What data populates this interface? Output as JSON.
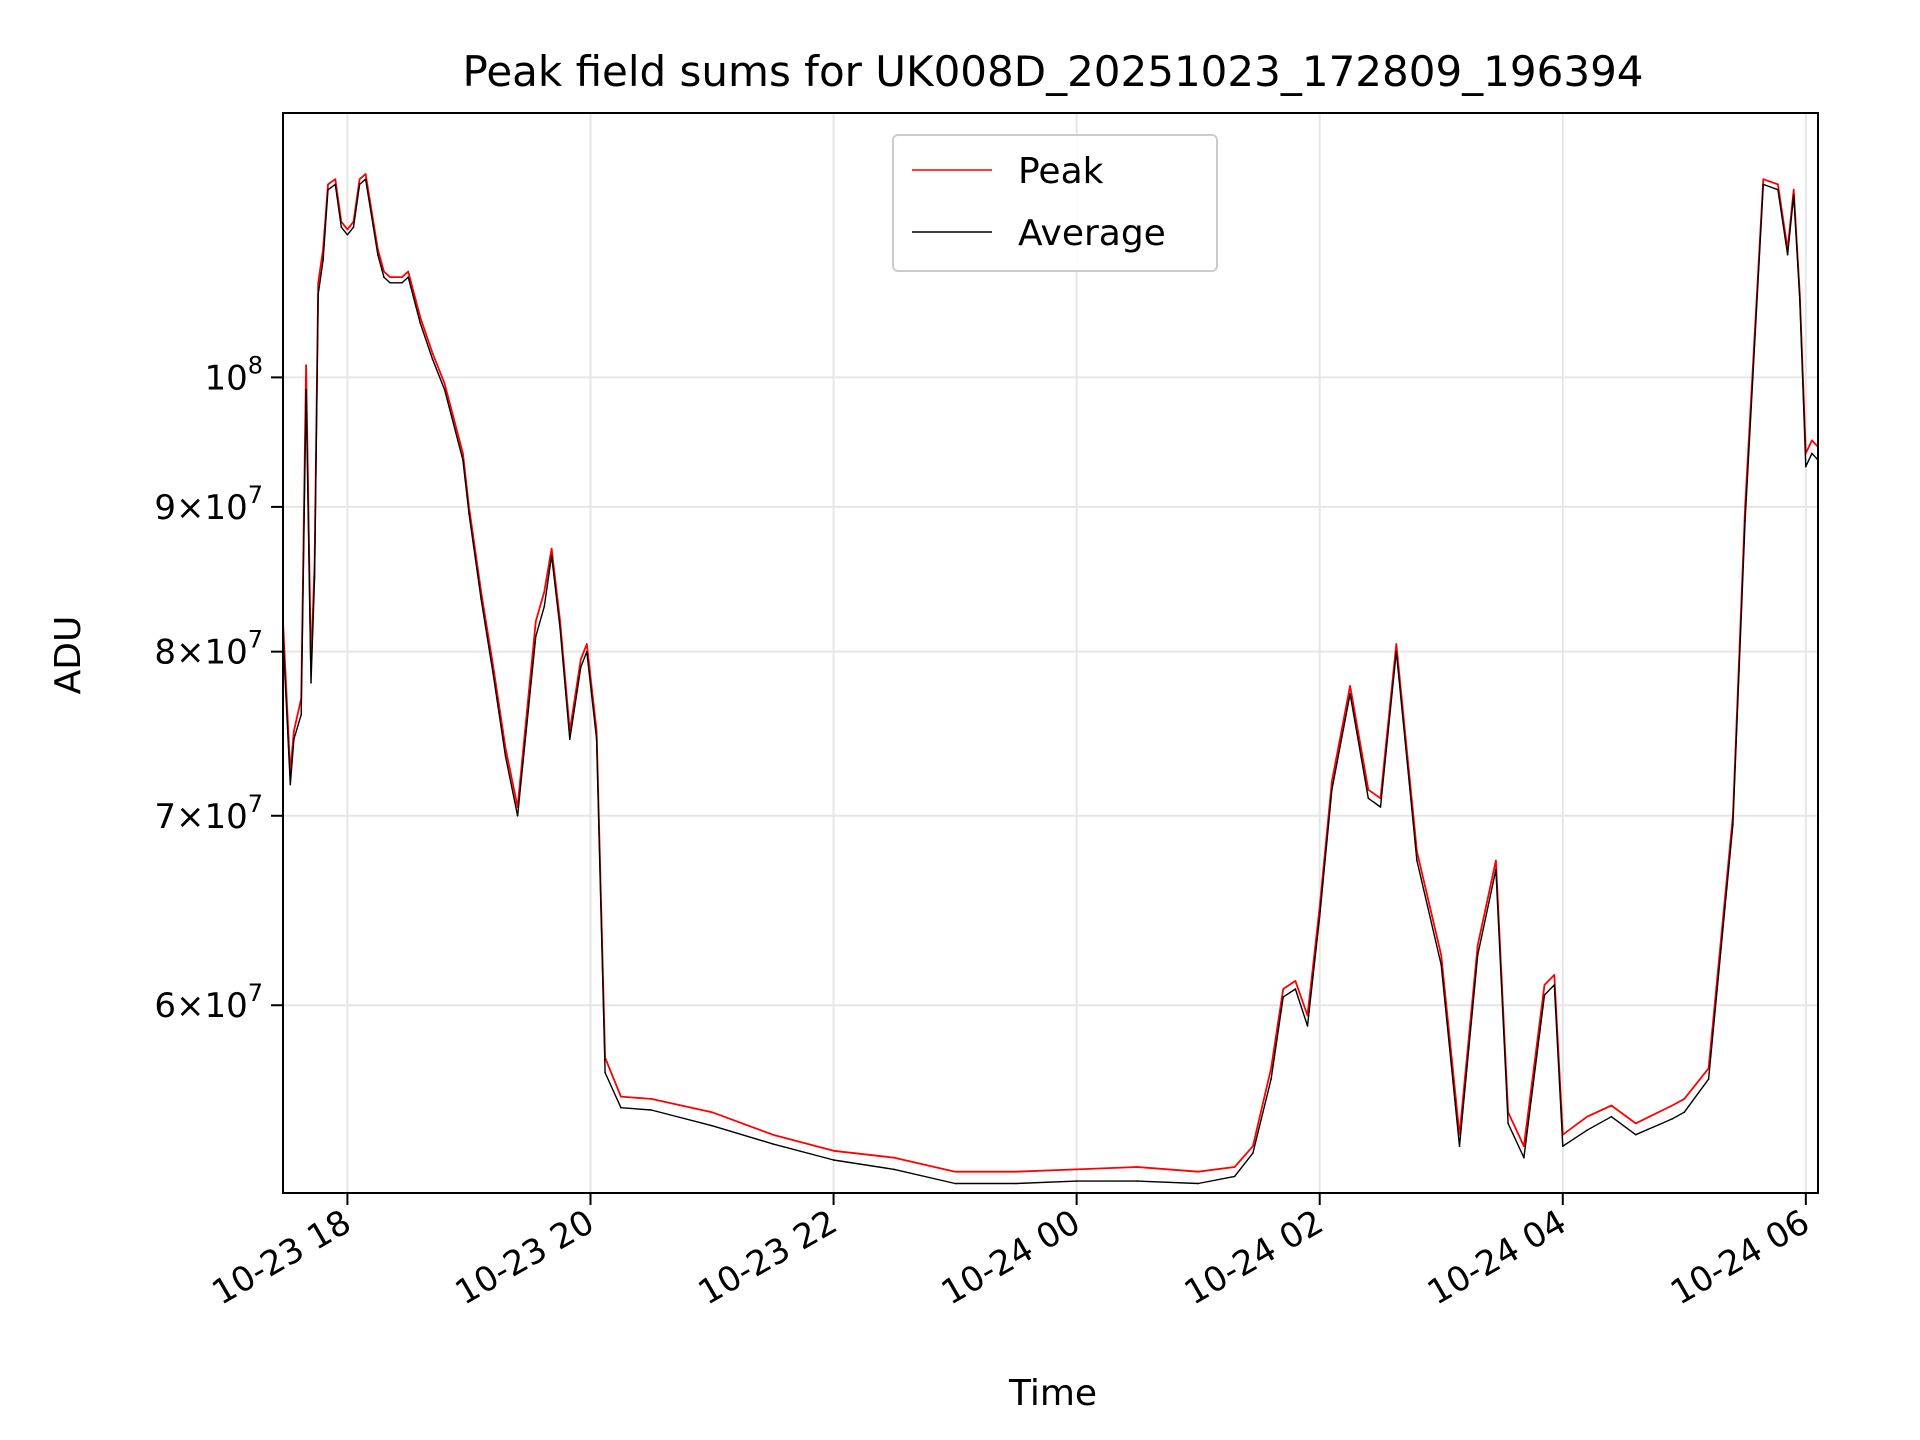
{
  "chart_data": {
    "type": "line",
    "title": "Peak field sums for UK008D_20251023_172809_196394",
    "xlabel": "Time",
    "ylabel": "ADU",
    "yscale": "log",
    "grid": true,
    "legend_position": "top-center",
    "xlim_hours": [
      17.47,
      30.1
    ],
    "ylim": [
      51500000,
      124000000
    ],
    "x_ticks": [
      {
        "hour": 18,
        "label": "10-23 18"
      },
      {
        "hour": 20,
        "label": "10-23 20"
      },
      {
        "hour": 22,
        "label": "10-23 22"
      },
      {
        "hour": 24,
        "label": "10-24 00"
      },
      {
        "hour": 26,
        "label": "10-24 02"
      },
      {
        "hour": 28,
        "label": "10-24 04"
      },
      {
        "hour": 30,
        "label": "10-24 06"
      }
    ],
    "y_ticks": [
      {
        "value": 60000000,
        "mantissa": "6",
        "exp": "7"
      },
      {
        "value": 70000000,
        "mantissa": "7",
        "exp": "7"
      },
      {
        "value": 80000000,
        "mantissa": "8",
        "exp": "7"
      },
      {
        "value": 90000000,
        "mantissa": "9",
        "exp": "7"
      },
      {
        "value": 100000000,
        "mantissa": "",
        "exp": "8"
      }
    ],
    "tick_base": "10",
    "times_sign": "×",
    "series": [
      {
        "name": "Peak",
        "color": "#ff0000",
        "x_hours": [
          17.47,
          17.53,
          17.56,
          17.62,
          17.66,
          17.7,
          17.73,
          17.76,
          17.8,
          17.84,
          17.9,
          17.95,
          18.0,
          18.05,
          18.1,
          18.15,
          18.25,
          18.3,
          18.35,
          18.45,
          18.5,
          18.6,
          18.7,
          18.8,
          18.95,
          19.0,
          19.1,
          19.2,
          19.3,
          19.4,
          19.55,
          19.62,
          19.68,
          19.75,
          19.83,
          19.92,
          19.97,
          20.05,
          20.12,
          20.25,
          20.5,
          21.0,
          21.5,
          22.0,
          22.5,
          23.0,
          23.5,
          24.0,
          24.5,
          25.0,
          25.3,
          25.45,
          25.6,
          25.7,
          25.8,
          25.9,
          26.0,
          26.1,
          26.25,
          26.4,
          26.5,
          26.63,
          26.8,
          27.0,
          27.15,
          27.3,
          27.45,
          27.55,
          27.68,
          27.85,
          27.93,
          28.0,
          28.2,
          28.4,
          28.6,
          28.9,
          29.0,
          29.2,
          29.4,
          29.5,
          29.65,
          29.77,
          29.85,
          29.9,
          29.95,
          30.0,
          30.05,
          30.1
        ],
        "values": [
          82000000,
          72500000,
          75000000,
          77000000,
          101000000,
          79000000,
          86000000,
          108000000,
          111000000,
          117000000,
          117500000,
          113500000,
          112800000,
          113500000,
          117500000,
          118000000,
          111000000,
          109000000,
          108500000,
          108500000,
          109000000,
          105000000,
          102000000,
          99500000,
          94000000,
          90000000,
          84000000,
          79000000,
          74000000,
          70500000,
          82000000,
          84000000,
          87000000,
          82000000,
          75000000,
          79500000,
          80500000,
          75000000,
          57500000,
          55700000,
          55600000,
          55000000,
          54000000,
          53300000,
          53000000,
          52400000,
          52400000,
          52500000,
          52600000,
          52400000,
          52600000,
          53500000,
          57000000,
          60800000,
          61200000,
          59500000,
          65000000,
          72000000,
          77800000,
          71500000,
          71000000,
          80500000,
          68000000,
          62500000,
          54000000,
          63000000,
          67500000,
          55000000,
          53500000,
          61000000,
          61500000,
          54000000,
          54800000,
          55300000,
          54500000,
          55300000,
          55600000,
          57000000,
          70000000,
          90000000,
          117500000,
          117000000,
          111000000,
          116500000,
          107000000,
          94000000,
          95000000,
          94500000
        ]
      },
      {
        "name": "Average",
        "color": "#000000",
        "x_hours": [
          17.47,
          17.53,
          17.56,
          17.62,
          17.66,
          17.7,
          17.73,
          17.76,
          17.8,
          17.84,
          17.9,
          17.95,
          18.0,
          18.05,
          18.1,
          18.15,
          18.25,
          18.3,
          18.35,
          18.45,
          18.5,
          18.6,
          18.7,
          18.8,
          18.95,
          19.0,
          19.1,
          19.2,
          19.3,
          19.4,
          19.55,
          19.62,
          19.68,
          19.75,
          19.83,
          19.92,
          19.97,
          20.05,
          20.12,
          20.25,
          20.5,
          21.0,
          21.5,
          22.0,
          22.5,
          23.0,
          23.5,
          24.0,
          24.5,
          25.0,
          25.3,
          25.45,
          25.6,
          25.7,
          25.8,
          25.9,
          26.0,
          26.1,
          26.25,
          26.4,
          26.5,
          26.63,
          26.8,
          27.0,
          27.15,
          27.3,
          27.45,
          27.55,
          27.68,
          27.85,
          27.93,
          28.0,
          28.2,
          28.4,
          28.6,
          28.9,
          29.0,
          29.2,
          29.4,
          29.5,
          29.65,
          29.77,
          29.85,
          29.9,
          29.95,
          30.0,
          30.05,
          30.1
        ],
        "values": [
          81000000,
          71800000,
          74500000,
          76000000,
          99000000,
          78000000,
          85000000,
          107000000,
          110000000,
          116500000,
          117000000,
          113000000,
          112300000,
          113000000,
          117000000,
          117500000,
          110500000,
          108500000,
          108000000,
          108000000,
          108500000,
          104500000,
          101500000,
          99000000,
          93500000,
          89500000,
          83500000,
          78500000,
          73500000,
          70000000,
          81000000,
          83000000,
          86500000,
          81500000,
          74500000,
          79000000,
          80000000,
          74500000,
          56800000,
          55200000,
          55100000,
          54400000,
          53600000,
          52900000,
          52500000,
          51900000,
          51900000,
          52000000,
          52000000,
          51900000,
          52200000,
          53200000,
          56500000,
          60400000,
          60800000,
          59000000,
          64500000,
          71500000,
          77300000,
          71000000,
          70500000,
          80000000,
          67500000,
          62000000,
          53500000,
          62500000,
          67000000,
          54500000,
          53000000,
          60500000,
          61000000,
          53500000,
          54200000,
          54800000,
          54000000,
          54700000,
          55000000,
          56500000,
          69500000,
          89000000,
          117000000,
          116500000,
          110500000,
          116000000,
          106500000,
          93000000,
          94000000,
          93500000
        ]
      }
    ],
    "legend": [
      "Peak",
      "Average"
    ]
  }
}
